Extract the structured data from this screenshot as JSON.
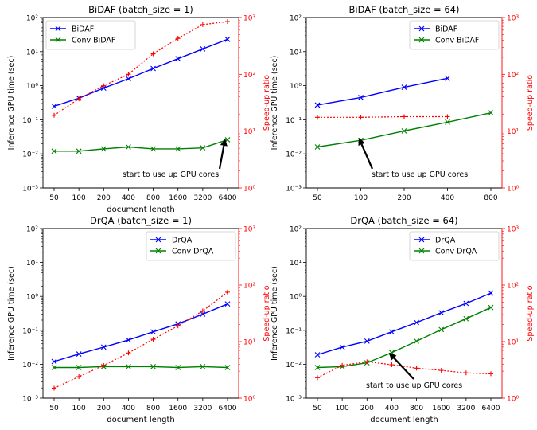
{
  "chart_data": [
    {
      "type": "line",
      "title": "BiDAF (batch_size = 1)",
      "xlabel": "document length",
      "ylabel": "Inference GPU time (sec)",
      "y2label": "Speed-up ratio",
      "xscale": "log2",
      "x_ticks": [
        50,
        100,
        200,
        400,
        800,
        1600,
        3200,
        6400
      ],
      "yscale": "log",
      "ylim": [
        0.001,
        100
      ],
      "y2scale": "log",
      "y2lim": [
        1,
        1000
      ],
      "y_tick_labels": [
        "10⁻³",
        "10⁻²",
        "10⁻¹",
        "10⁰",
        "10¹",
        "10²"
      ],
      "y2_tick_labels": [
        "10⁰",
        "10¹",
        "10²",
        "10³"
      ],
      "legend_position": "top-left",
      "series": [
        {
          "name": "BiDAF",
          "color": "#0000ff",
          "marker": "x",
          "axis": "left",
          "x": [
            50,
            100,
            200,
            400,
            800,
            1600,
            3200,
            6400
          ],
          "values": [
            0.25,
            0.43,
            0.85,
            1.6,
            3.2,
            6.2,
            12,
            23
          ]
        },
        {
          "name": "Conv BiDAF",
          "color": "#008000",
          "marker": "x",
          "axis": "left",
          "x": [
            50,
            100,
            200,
            400,
            800,
            1600,
            3200,
            6400
          ],
          "values": [
            0.012,
            0.012,
            0.014,
            0.016,
            0.014,
            0.014,
            0.015,
            0.026
          ]
        },
        {
          "color": "#ff0000",
          "marker": "+",
          "axis": "right",
          "style": "dotted",
          "x": [
            50,
            100,
            200,
            400,
            800,
            1600,
            3200,
            6400
          ],
          "values": [
            19,
            37,
            63,
            100,
            230,
            430,
            750,
            850
          ]
        }
      ],
      "annotation": "start to use up GPU cores"
    },
    {
      "type": "line",
      "title": "BiDAF (batch_size = 64)",
      "xlabel": "",
      "ylabel": "Inference GPU time (sec)",
      "y2label": "Speed-up ratio",
      "xscale": "log2",
      "x_ticks": [
        50,
        100,
        200,
        400,
        800
      ],
      "yscale": "log",
      "ylim": [
        0.001,
        100
      ],
      "y2scale": "log",
      "y2lim": [
        1,
        1000
      ],
      "y_tick_labels": [
        "10⁻³",
        "10⁻²",
        "10⁻¹",
        "10⁰",
        "10¹",
        "10²"
      ],
      "y2_tick_labels": [
        "10⁰",
        "10¹",
        "10²",
        "10³"
      ],
      "legend_position": "top-right",
      "series": [
        {
          "name": "BiDAF",
          "color": "#0000ff",
          "marker": "x",
          "axis": "left",
          "x": [
            50,
            100,
            200,
            400
          ],
          "values": [
            0.27,
            0.45,
            0.9,
            1.65
          ]
        },
        {
          "name": "Conv BiDAF",
          "color": "#008000",
          "marker": "x",
          "axis": "left",
          "x": [
            50,
            100,
            200,
            400,
            800
          ],
          "values": [
            0.016,
            0.025,
            0.047,
            0.085,
            0.16
          ]
        },
        {
          "color": "#ff0000",
          "marker": "+",
          "axis": "right",
          "style": "dotted",
          "x": [
            50,
            100,
            200,
            400
          ],
          "values": [
            17.5,
            17.5,
            18,
            18
          ]
        }
      ],
      "annotation": "start to use up GPU cores"
    },
    {
      "type": "line",
      "title": "DrQA (batch_size = 1)",
      "xlabel": "document length",
      "ylabel": "Inference GPU time (sec)",
      "y2label": "Speed-up ratio",
      "xscale": "log2",
      "x_ticks": [
        50,
        100,
        200,
        400,
        800,
        1600,
        3200,
        6400
      ],
      "yscale": "log",
      "ylim": [
        0.001,
        100
      ],
      "y2scale": "log",
      "y2lim": [
        1,
        1000
      ],
      "y_tick_labels": [
        "10⁻³",
        "10⁻²",
        "10⁻¹",
        "10⁰",
        "10¹",
        "10²"
      ],
      "y2_tick_labels": [
        "10⁰",
        "10¹",
        "10²",
        "10³"
      ],
      "legend_position": "top-right",
      "series": [
        {
          "name": "DrQA",
          "color": "#0000ff",
          "marker": "x",
          "axis": "left",
          "x": [
            50,
            100,
            200,
            400,
            800,
            1600,
            3200,
            6400
          ],
          "values": [
            0.012,
            0.02,
            0.032,
            0.052,
            0.09,
            0.155,
            0.3,
            0.6
          ]
        },
        {
          "name": "Conv DrQA",
          "color": "#008000",
          "marker": "x",
          "axis": "left",
          "x": [
            50,
            100,
            200,
            400,
            800,
            1600,
            3200,
            6400
          ],
          "values": [
            0.008,
            0.008,
            0.0085,
            0.0085,
            0.0085,
            0.008,
            0.0085,
            0.008
          ]
        },
        {
          "color": "#ff0000",
          "marker": "+",
          "axis": "right",
          "style": "dotted",
          "x": [
            50,
            100,
            200,
            400,
            800,
            1600,
            3200,
            6400
          ],
          "values": [
            1.5,
            2.4,
            3.8,
            6.3,
            11,
            19,
            35,
            75
          ]
        }
      ]
    },
    {
      "type": "line",
      "title": "DrQA (batch_size = 64)",
      "xlabel": "document length",
      "ylabel": "Inference GPU time (sec)",
      "y2label": "Speed-up ratio",
      "xscale": "log2",
      "x_ticks": [
        50,
        100,
        200,
        400,
        800,
        1600,
        3200,
        6400
      ],
      "yscale": "log",
      "ylim": [
        0.001,
        100
      ],
      "y2scale": "log",
      "y2lim": [
        1,
        1000
      ],
      "y_tick_labels": [
        "10⁻³",
        "10⁻²",
        "10⁻¹",
        "10⁰",
        "10¹",
        "10²"
      ],
      "y2_tick_labels": [
        "10⁰",
        "10¹",
        "10²",
        "10³"
      ],
      "legend_position": "top-right",
      "series": [
        {
          "name": "DrQA",
          "color": "#0000ff",
          "marker": "x",
          "axis": "left",
          "x": [
            50,
            100,
            200,
            400,
            800,
            1600,
            3200,
            6400
          ],
          "values": [
            0.019,
            0.032,
            0.048,
            0.09,
            0.17,
            0.33,
            0.62,
            1.25
          ]
        },
        {
          "name": "Conv DrQA",
          "color": "#008000",
          "marker": "x",
          "axis": "left",
          "x": [
            50,
            100,
            200,
            400,
            800,
            1600,
            3200,
            6400
          ],
          "values": [
            0.008,
            0.0085,
            0.011,
            0.022,
            0.048,
            0.105,
            0.22,
            0.47
          ]
        },
        {
          "color": "#ff0000",
          "marker": "+",
          "axis": "right",
          "style": "dotted",
          "x": [
            50,
            100,
            200,
            400,
            800,
            1600,
            3200,
            6400
          ],
          "values": [
            2.3,
            3.8,
            4.4,
            3.9,
            3.4,
            3.1,
            2.8,
            2.7
          ]
        }
      ],
      "annotation": "start to use up GPU cores"
    }
  ]
}
